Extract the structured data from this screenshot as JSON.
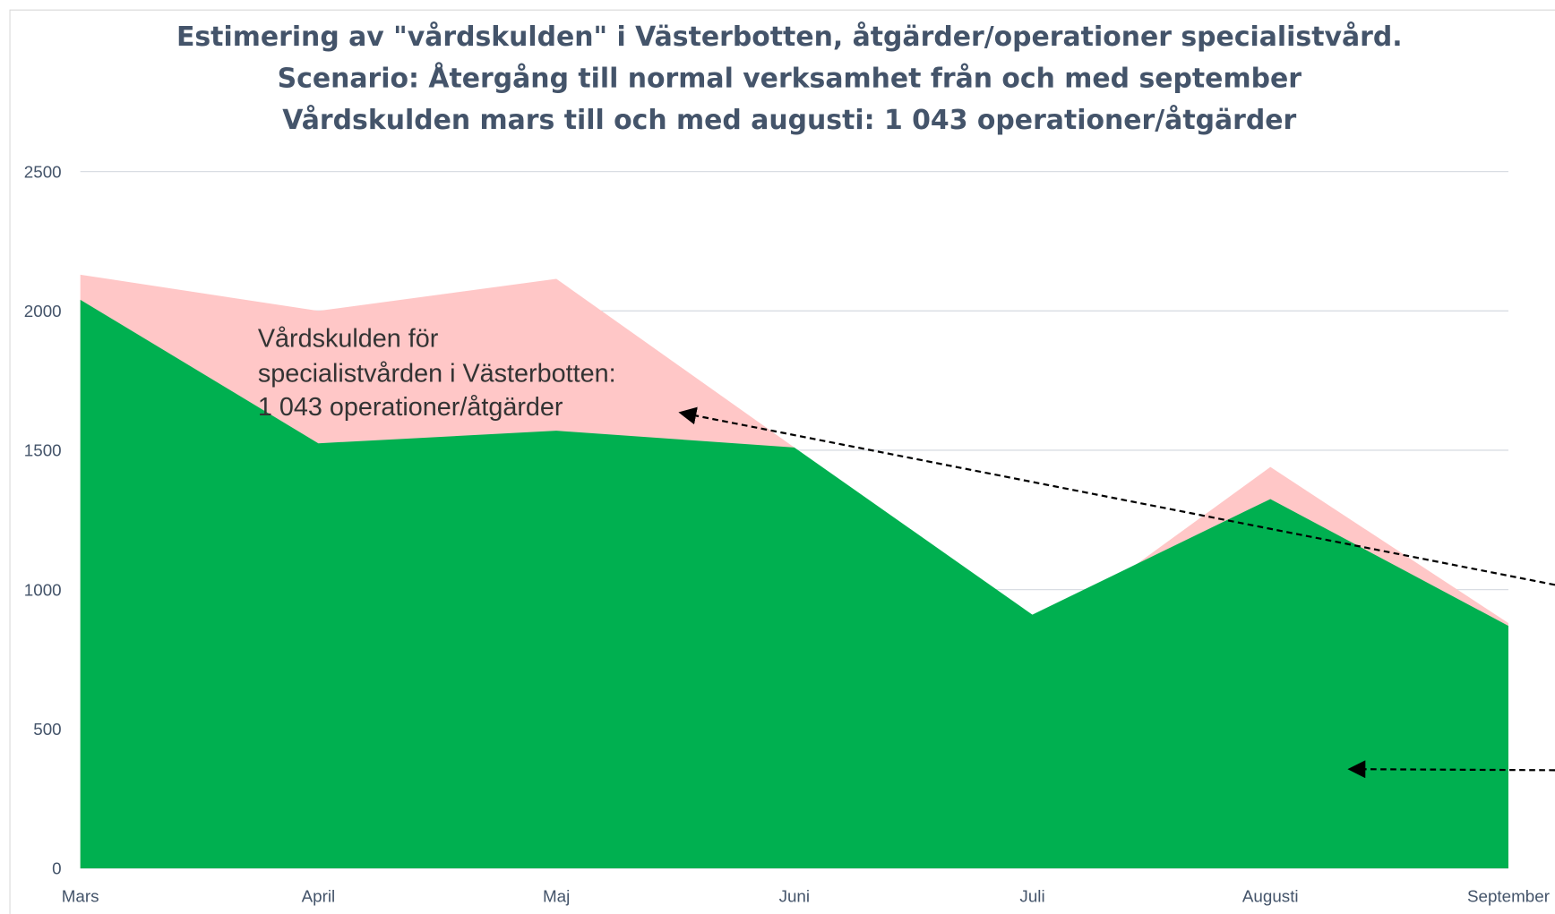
{
  "chart_data": {
    "type": "area",
    "title": [
      "Estimering av \"vårdskulden\" i Västerbotten, åtgärder/operationer specialistvård.",
      "Scenario: Återgång till normal verksamhet från och med september",
      "Vårdskulden mars till och med augusti: 1 043 operationer/åtgärder"
    ],
    "categories": [
      "Mars",
      "April",
      "Maj",
      "Juni",
      "Juli",
      "Augusti",
      "September"
    ],
    "series": [
      {
        "color": "#ffc7c7",
        "values": [
          2130,
          2000,
          2115,
          1510,
          820,
          1440,
          880
        ]
      },
      {
        "color": "#00b050",
        "values": [
          2040,
          1525,
          1570,
          1510,
          910,
          1325,
          870
        ]
      }
    ],
    "ylim": [
      0,
      2500
    ],
    "yticks": [
      0,
      500,
      1000,
      1500,
      2000,
      2500
    ],
    "grid": true,
    "annotation": [
      "Vårdskulden för",
      "specialistvården i Västerbotten:",
      "1 043 operationer/åtgärder"
    ]
  }
}
